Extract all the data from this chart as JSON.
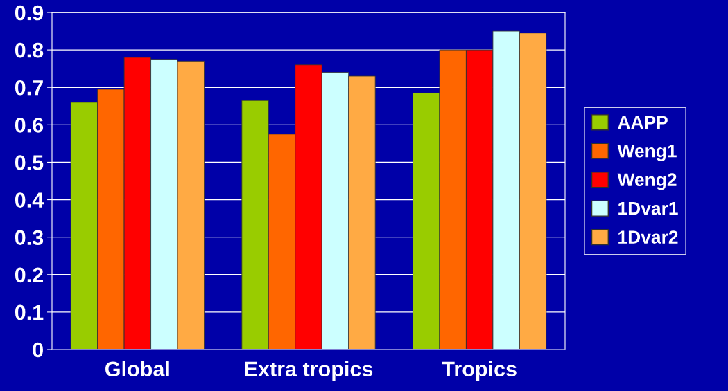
{
  "chart_data": {
    "type": "bar",
    "categories": [
      "Global",
      "Extra tropics",
      "Tropics"
    ],
    "series": [
      {
        "name": "AAPP",
        "color": "#99cc00",
        "values": [
          0.66,
          0.665,
          0.685
        ]
      },
      {
        "name": "Weng1",
        "color": "#ff6600",
        "values": [
          0.695,
          0.575,
          0.8
        ]
      },
      {
        "name": "Weng2",
        "color": "#ff0000",
        "values": [
          0.78,
          0.76,
          0.8
        ]
      },
      {
        "name": "1Dvar1",
        "color": "#ccffff",
        "values": [
          0.775,
          0.74,
          0.85
        ]
      },
      {
        "name": "1Dvar2",
        "color": "#ffaa44",
        "values": [
          0.77,
          0.73,
          0.845
        ]
      }
    ],
    "ylim": [
      0,
      0.9
    ],
    "yticks": [
      0,
      0.1,
      0.2,
      0.3,
      0.4,
      0.5,
      0.6,
      0.7,
      0.8,
      0.9
    ],
    "grid": "y",
    "legend": "right"
  }
}
